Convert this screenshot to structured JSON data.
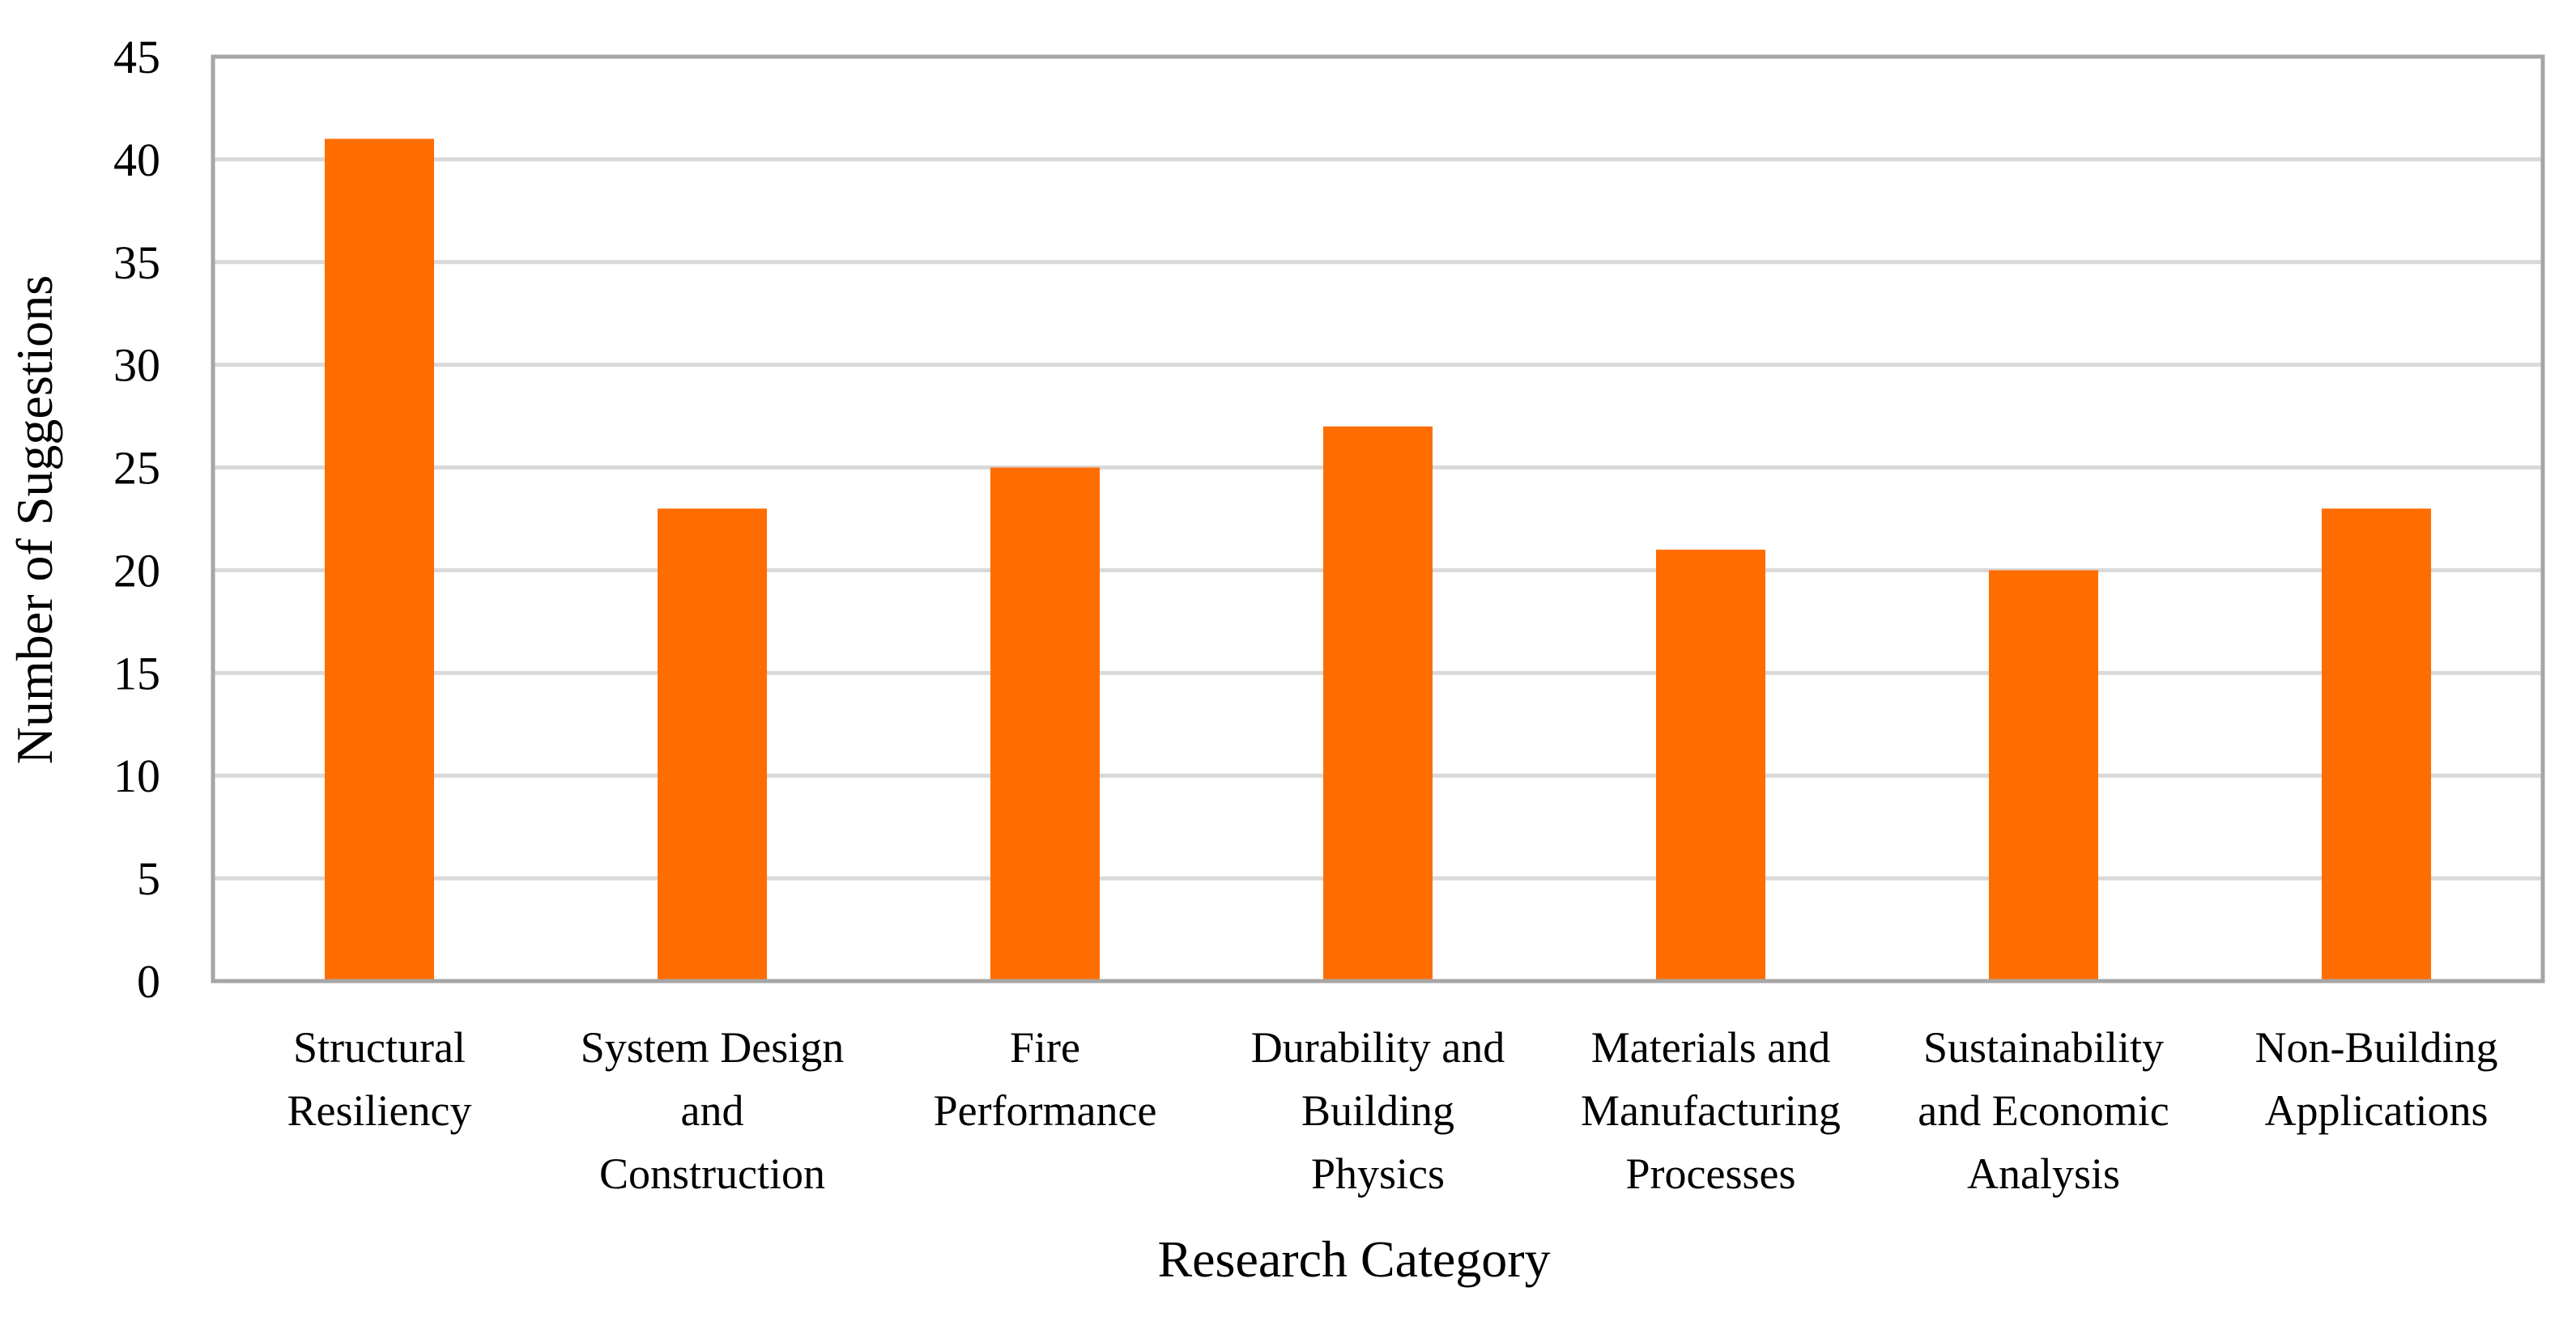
{
  "chart_data": {
    "type": "bar",
    "title": "",
    "xlabel": "Research Category",
    "ylabel": "Number of Suggestions",
    "ylim": [
      0,
      45
    ],
    "yticks": [
      0,
      5,
      10,
      15,
      20,
      25,
      30,
      35,
      40,
      45
    ],
    "grid": true,
    "categories": [
      [
        "Structural",
        "Resiliency"
      ],
      [
        "System Design",
        "and",
        "Construction"
      ],
      [
        "Fire",
        "Performance"
      ],
      [
        "Durability and",
        "Building",
        "Physics"
      ],
      [
        "Materials and",
        "Manufacturing",
        "Processes"
      ],
      [
        "Sustainability",
        "and Economic",
        "Analysis"
      ],
      [
        "Non-Building",
        "Applications"
      ]
    ],
    "values": [
      41,
      23,
      25,
      27,
      21,
      20,
      23
    ],
    "colors": {
      "bar": "#FF6D00",
      "grid": "#D9D9D9",
      "frame": "#A6A6A6"
    }
  }
}
